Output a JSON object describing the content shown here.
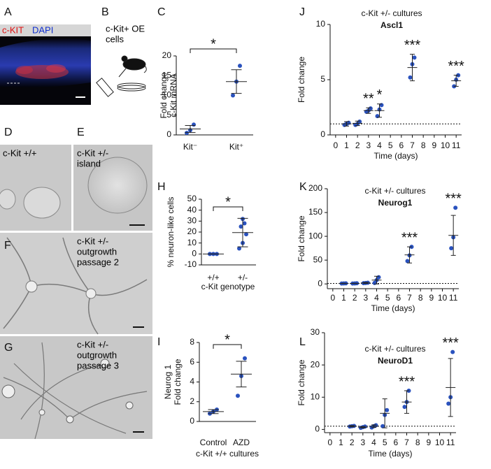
{
  "figure": {
    "letters": [
      "A",
      "B",
      "C",
      "D",
      "E",
      "F",
      "G",
      "H",
      "I",
      "J",
      "K",
      "L"
    ],
    "a_labels": [
      "c-KIT",
      "DAPI"
    ],
    "b_text": [
      "c-Kit+ OE",
      "cells"
    ],
    "d_text": [
      "c-Kit +/+"
    ],
    "e_text": [
      "c-Kit +/-",
      "island"
    ],
    "f_text": [
      "c-Kit +/-",
      "outgrowth",
      "passage 2"
    ],
    "g_text": [
      "c-Kit +/-",
      "outgrowth",
      "passage 3"
    ]
  },
  "chart_data": [
    {
      "type": "dotplot",
      "ylabel": [
        "Fold change",
        "c-Kit mRNA"
      ],
      "categories": [
        "Kit⁻",
        "Kit⁺"
      ],
      "groups": [
        {
          "points": [
            0.5,
            1.2,
            2.6
          ],
          "mean": 1.5,
          "error": 0.9
        },
        {
          "points": [
            10,
            13.5,
            17.5
          ],
          "mean": 13.5,
          "error": 3
        }
      ],
      "ylim": [
        0,
        20
      ],
      "yticks": [
        0,
        5,
        10,
        15,
        20
      ],
      "sig": "*",
      "color": "#2a52be"
    },
    {
      "type": "dotplot",
      "ylabel": [
        "% neuron-like cells"
      ],
      "xlabel": "c-Kit genotype",
      "categories": [
        "+/+",
        "+/-"
      ],
      "groups": [
        {
          "points": [
            0,
            0,
            0
          ],
          "mean": 0,
          "error": 0
        },
        {
          "points": [
            5,
            10,
            18,
            25,
            28,
            32
          ],
          "mean": 19.5,
          "error": 13
        }
      ],
      "ylim": [
        -10,
        50
      ],
      "yticks": [
        -10,
        0,
        10,
        20,
        30,
        40,
        50
      ],
      "sig": "*",
      "color": "#2a52be"
    },
    {
      "type": "dotplot",
      "ylabel": [
        "Neurog 1",
        "Fold change"
      ],
      "xlabel": "c-Kit +/+ cultures",
      "categories": [
        "Control",
        "AZD"
      ],
      "groups": [
        {
          "points": [
            0.8,
            1.0,
            1.2
          ],
          "mean": 1,
          "error": 0.2
        },
        {
          "points": [
            2.6,
            4.6,
            6.4
          ],
          "mean": 4.8,
          "error": 1.3
        }
      ],
      "ylim": [
        0,
        8
      ],
      "yticks": [
        0,
        2,
        4,
        6,
        8
      ],
      "sig": "*",
      "color": "#2a52be"
    },
    {
      "type": "timeplot",
      "title": "c-Kit +/- cultures",
      "subtitle": "Ascl1",
      "ylabel": [
        "Fold change"
      ],
      "xlabel": "Time (days)",
      "x": [
        1,
        2,
        3,
        4,
        7,
        11
      ],
      "groups": [
        {
          "points": [
            0.9,
            1.0,
            1.1
          ],
          "mean": 1,
          "error": 0.2
        },
        {
          "points": [
            0.9,
            1.0,
            1.2
          ],
          "mean": 1.05,
          "error": 0.2
        },
        {
          "points": [
            2.1,
            2.2,
            2.4
          ],
          "mean": 2.2,
          "error": 0.25
        },
        {
          "points": [
            1.7,
            2.3,
            2.7
          ],
          "mean": 2.2,
          "error": 0.6
        },
        {
          "points": [
            5.2,
            6.4,
            7.0
          ],
          "mean": 6.1,
          "error": 1.2
        },
        {
          "points": [
            4.4,
            5.0,
            5.4
          ],
          "mean": 4.9,
          "error": 0.5
        }
      ],
      "annotations": [
        null,
        null,
        "**",
        "*",
        "***",
        "***"
      ],
      "hline": 1,
      "xlim": [
        -0.5,
        11.5
      ],
      "xticks": [
        0,
        1,
        2,
        3,
        4,
        5,
        6,
        7,
        8,
        9,
        10,
        11
      ],
      "ylim": [
        0,
        10
      ],
      "yticks": [
        0,
        5,
        10
      ],
      "color": "#2a52be"
    },
    {
      "type": "timeplot",
      "title": "c-Kit +/- cultures",
      "subtitle": "Neurog1",
      "ylabel": [
        "Fold change"
      ],
      "xlabel": "Time (days)",
      "x": [
        1,
        2,
        3,
        4,
        7,
        11
      ],
      "groups": [
        {
          "points": [
            0.8,
            1,
            1.2
          ],
          "mean": 1,
          "error": 0.3
        },
        {
          "points": [
            0.8,
            1,
            1.3
          ],
          "mean": 1,
          "error": 0.3
        },
        {
          "points": [
            1.5,
            2,
            2.5
          ],
          "mean": 2,
          "error": 1
        },
        {
          "points": [
            2,
            8,
            14
          ],
          "mean": 8,
          "error": 8
        },
        {
          "points": [
            48,
            60,
            78
          ],
          "mean": 61,
          "error": 17
        },
        {
          "points": [
            75,
            98,
            160
          ],
          "mean": 102,
          "error": 42
        }
      ],
      "annotations": [
        null,
        null,
        null,
        null,
        "***",
        "***"
      ],
      "hline": 1,
      "xlim": [
        -0.5,
        11.5
      ],
      "xticks": [
        0,
        1,
        2,
        3,
        4,
        5,
        6,
        7,
        8,
        9,
        10,
        11
      ],
      "ylim": [
        -10,
        200
      ],
      "yticks": [
        0,
        50,
        100,
        150,
        200
      ],
      "color": "#2a52be"
    },
    {
      "type": "timeplot",
      "title": "c-Kit +/- cultures",
      "subtitle": "NeuroD1",
      "ylabel": [
        "Fold change"
      ],
      "xlabel": "Time (days)",
      "x": [
        2,
        3,
        4,
        5,
        7,
        11
      ],
      "groups": [
        {
          "points": [
            0.9,
            1,
            1.1
          ],
          "mean": 1,
          "error": 0.2
        },
        {
          "points": [
            0.5,
            0.7,
            0.9
          ],
          "mean": 0.7,
          "error": 0.2
        },
        {
          "points": [
            0.6,
            1,
            1.3
          ],
          "mean": 1,
          "error": 0.4
        },
        {
          "points": [
            1,
            4.5,
            6
          ],
          "mean": 5,
          "error": 4.5
        },
        {
          "points": [
            7,
            8.5,
            12
          ],
          "mean": 8.5,
          "error": 3.5
        },
        {
          "points": [
            8,
            10,
            24
          ],
          "mean": 13,
          "error": 9
        }
      ],
      "annotations": [
        null,
        null,
        null,
        null,
        "***",
        "***"
      ],
      "hline": 1,
      "xlim": [
        -0.5,
        11.5
      ],
      "xticks": [
        0,
        1,
        2,
        3,
        4,
        5,
        6,
        7,
        8,
        9,
        10,
        11
      ],
      "ylim": [
        -1,
        30
      ],
      "yticks": [
        0,
        10,
        20,
        30
      ],
      "color": "#2a52be"
    }
  ]
}
